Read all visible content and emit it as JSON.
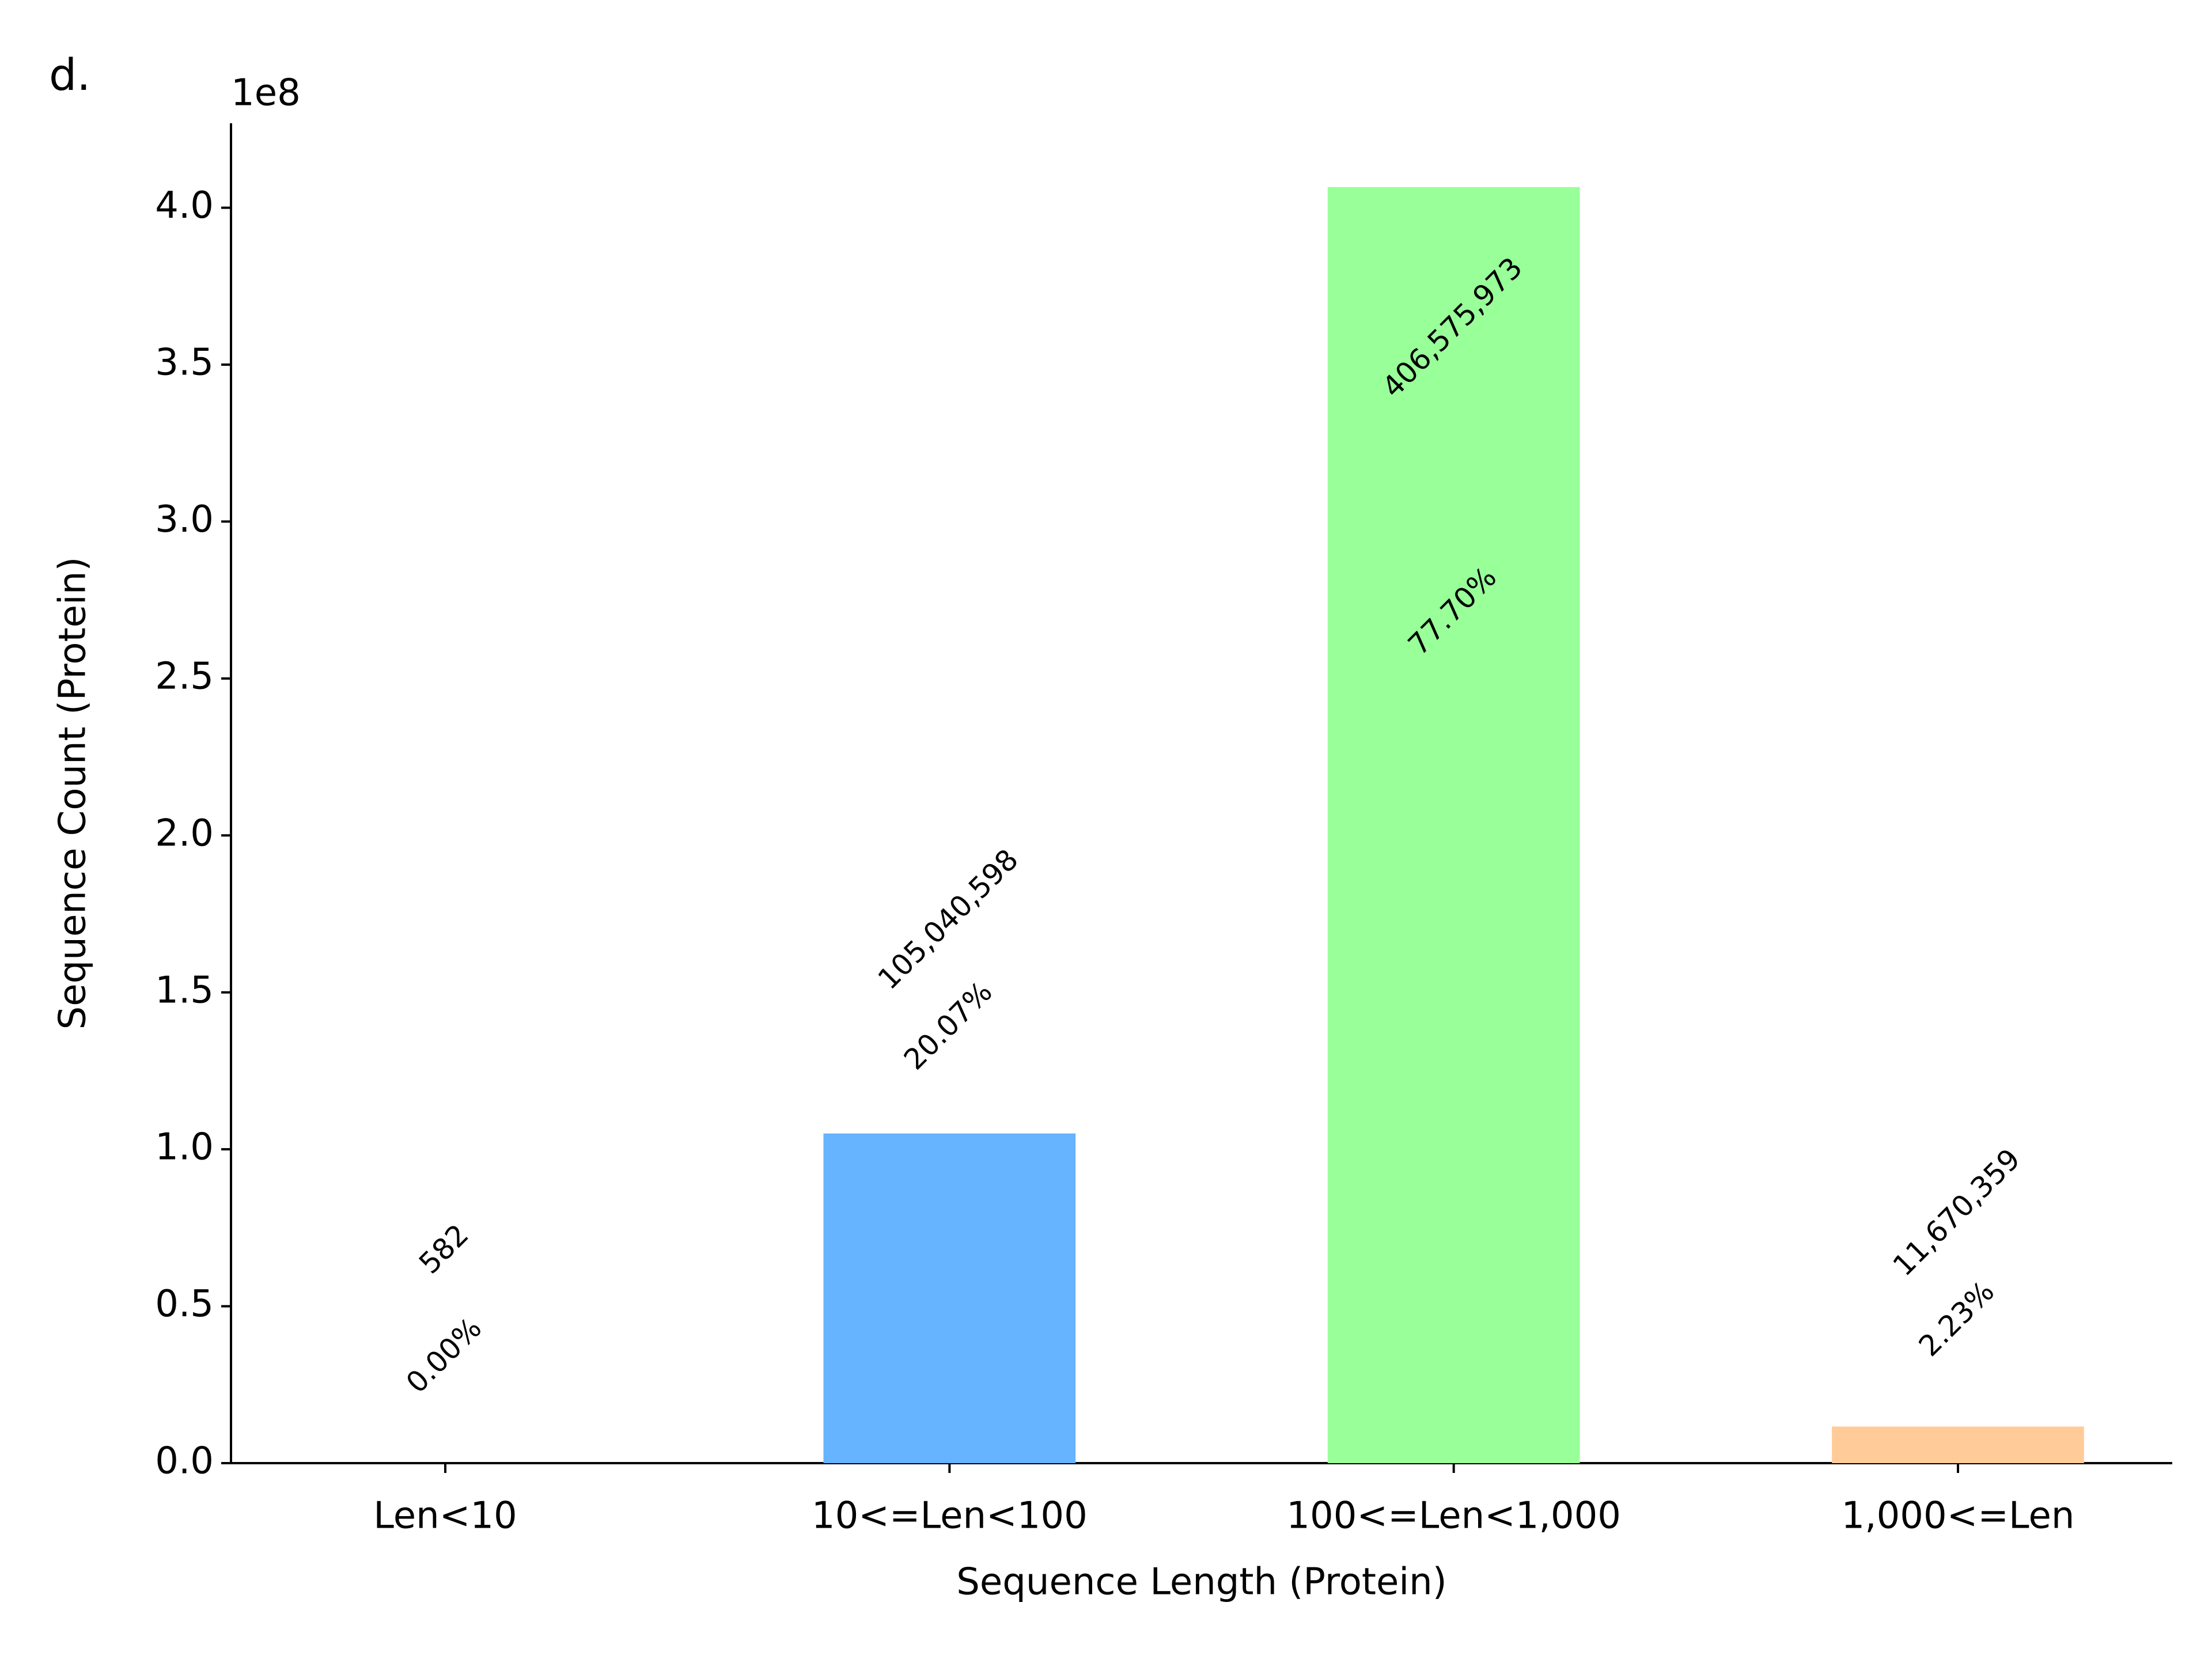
{
  "chart_data": {
    "type": "bar",
    "panel_label": "d.",
    "offset_label": "1e8",
    "x_label": "Sequence Length (Protein)",
    "y_label": "Sequence Count (Protein)",
    "categories": [
      "Len<10",
      "10<=Len<100",
      "100<=Len<1,000",
      "1,000<=Len"
    ],
    "values": [
      582,
      105040598,
      406575973,
      11670359
    ],
    "value_labels": [
      "582",
      "105,040,598",
      "406,575,973",
      "11,670,359"
    ],
    "percent_labels": [
      "0.00%",
      "20.07%",
      "77.70%",
      "2.23%"
    ],
    "colors": [
      "#ff9999",
      "#66b3ff",
      "#99ff99",
      "#ffcc99"
    ],
    "ylim": [
      0,
      426900000
    ],
    "yticks": [
      {
        "value": 0,
        "label": "0.0"
      },
      {
        "value": 50000000,
        "label": "0.5"
      },
      {
        "value": 100000000,
        "label": "1.0"
      },
      {
        "value": 150000000,
        "label": "1.5"
      },
      {
        "value": 200000000,
        "label": "2.0"
      },
      {
        "value": 250000000,
        "label": "2.5"
      },
      {
        "value": 300000000,
        "label": "3.0"
      },
      {
        "value": 350000000,
        "label": "3.5"
      },
      {
        "value": 400000000,
        "label": "4.0"
      }
    ]
  }
}
